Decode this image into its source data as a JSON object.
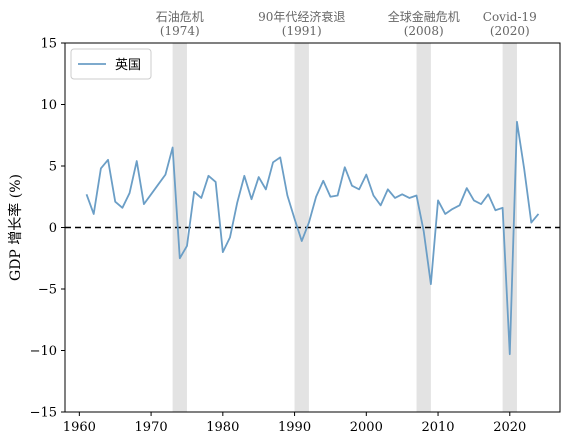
{
  "chart_data": {
    "type": "line",
    "title": "",
    "xlabel": "",
    "ylabel": "GDP 增长率 (%)",
    "xlim": [
      1958,
      2027
    ],
    "ylim": [
      -15,
      15
    ],
    "x_ticks": [
      1960,
      1970,
      1980,
      1990,
      2000,
      2010,
      2020
    ],
    "y_ticks": [
      -15,
      -10,
      -5,
      0,
      5,
      10,
      15
    ],
    "grid": false,
    "legend": {
      "placement": "top-left",
      "entries": [
        "英国"
      ]
    },
    "reference_line": {
      "y": 0,
      "style": "dashed",
      "color": "#000000"
    },
    "series": [
      {
        "name": "英国",
        "color": "#6b9ec6",
        "x": [
          1961,
          1962,
          1963,
          1964,
          1965,
          1966,
          1967,
          1968,
          1969,
          1970,
          1971,
          1972,
          1973,
          1974,
          1975,
          1976,
          1977,
          1978,
          1979,
          1980,
          1981,
          1982,
          1983,
          1984,
          1985,
          1986,
          1987,
          1988,
          1989,
          1990,
          1991,
          1992,
          1993,
          1994,
          1995,
          1996,
          1997,
          1998,
          1999,
          2000,
          2001,
          2002,
          2003,
          2004,
          2005,
          2006,
          2007,
          2008,
          2009,
          2010,
          2011,
          2012,
          2013,
          2014,
          2015,
          2016,
          2017,
          2018,
          2019,
          2020,
          2021,
          2022,
          2023,
          2024
        ],
        "y": [
          2.7,
          1.1,
          4.8,
          5.5,
          2.1,
          1.6,
          2.8,
          5.4,
          1.9,
          2.7,
          3.5,
          4.3,
          6.5,
          -2.5,
          -1.5,
          2.9,
          2.4,
          4.2,
          3.7,
          -2.0,
          -0.8,
          2.0,
          4.2,
          2.3,
          4.1,
          3.1,
          5.3,
          5.7,
          2.6,
          0.7,
          -1.1,
          0.4,
          2.5,
          3.8,
          2.5,
          2.6,
          4.9,
          3.4,
          3.1,
          4.3,
          2.6,
          1.8,
          3.1,
          2.4,
          2.7,
          2.4,
          2.6,
          -0.3,
          -4.6,
          2.2,
          1.1,
          1.5,
          1.8,
          3.2,
          2.2,
          1.9,
          2.7,
          1.4,
          1.6,
          -10.3,
          8.6,
          4.8,
          0.4,
          1.1
        ]
      }
    ],
    "shaded_periods": [
      {
        "label": "石油危机",
        "sublabel": "(1974)",
        "x_start": 1973,
        "x_end": 1975
      },
      {
        "label": "90年代经济衰退",
        "sublabel": "(1991)",
        "x_start": 1990,
        "x_end": 1992
      },
      {
        "label": "全球金融危机",
        "sublabel": "(2008)",
        "x_start": 2007,
        "x_end": 2009
      },
      {
        "label": "Covid-19",
        "sublabel": "(2020)",
        "x_start": 2019,
        "x_end": 2021
      }
    ],
    "colors": {
      "shade": "#d9d9d9",
      "annotation_text": "#666666",
      "axis": "#000000"
    }
  }
}
